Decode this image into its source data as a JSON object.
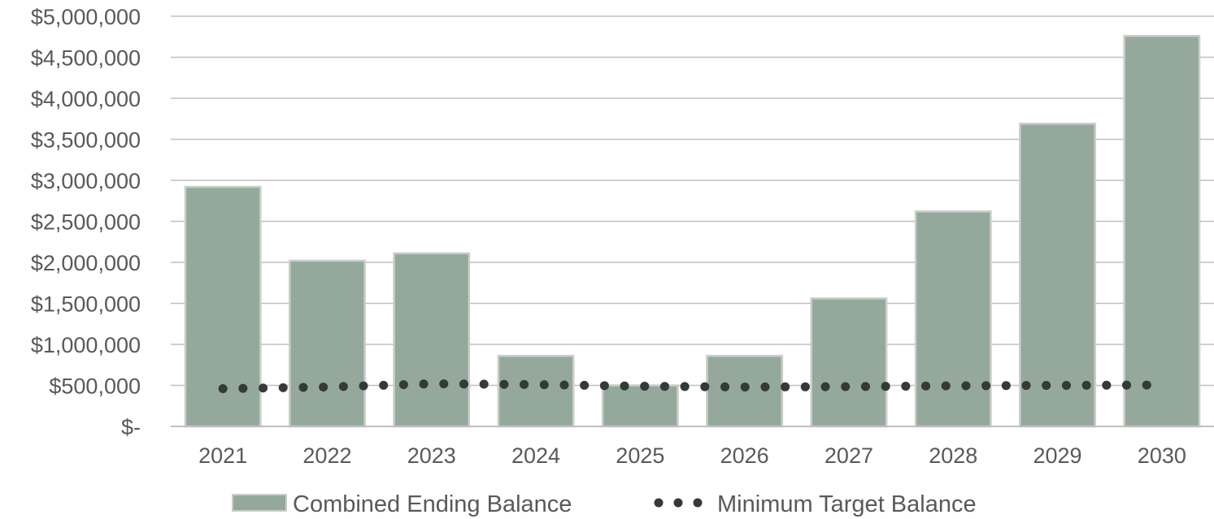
{
  "chart_data": {
    "type": "bar",
    "categories": [
      "2021",
      "2022",
      "2023",
      "2024",
      "2025",
      "2026",
      "2027",
      "2028",
      "2029",
      "2030"
    ],
    "series": [
      {
        "name": "Combined Ending Balance",
        "type": "bar",
        "values": [
          2920000,
          2020000,
          2110000,
          860000,
          500000,
          860000,
          1560000,
          2620000,
          3690000,
          4760000
        ],
        "color": "#94a99c",
        "stroke": "#c9ceca"
      },
      {
        "name": "Minimum Target Balance",
        "type": "line",
        "style": "dotted",
        "values": [
          460000,
          480000,
          520000,
          510000,
          490000,
          480000,
          485000,
          495000,
          500000,
          505000
        ],
        "color": "#333a37"
      }
    ],
    "ylim": [
      0,
      5000000
    ],
    "yticks": [
      0,
      500000,
      1000000,
      1500000,
      2000000,
      2500000,
      3000000,
      3500000,
      4000000,
      4500000,
      5000000
    ],
    "ytick_labels": [
      "$-",
      "$500,000",
      "$1,000,000",
      "$1,500,000",
      "$2,000,000",
      "$2,500,000",
      "$3,000,000",
      "$3,500,000",
      "$4,000,000",
      "$4,500,000",
      "$5,000,000"
    ],
    "grid": true,
    "gridline_color": "#bfbfbf",
    "legend_position": "bottom",
    "title": "",
    "xlabel": "",
    "ylabel": ""
  }
}
